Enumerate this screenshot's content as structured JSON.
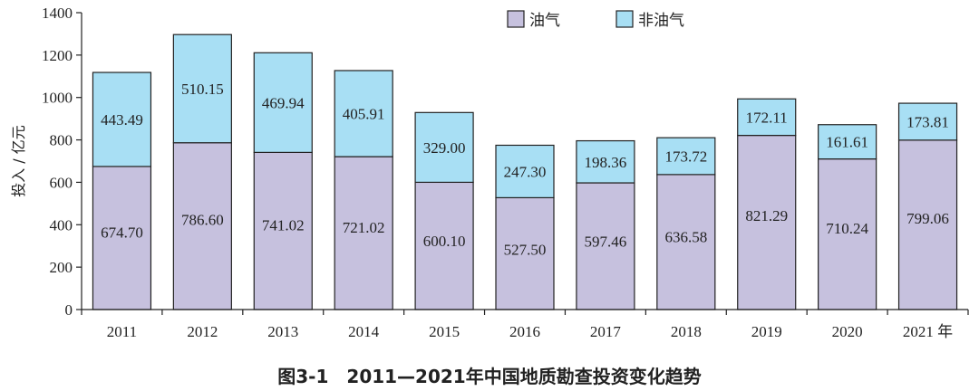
{
  "caption": "图3-1　2011—2021年中国地质勘查投资变化趋势",
  "colors": {
    "oil_gas": "#c6c1de",
    "non_oil_gas": "#a8dff4",
    "stroke": "#222222"
  },
  "chart_data": {
    "type": "bar",
    "stacked": true,
    "title": "图3-1　2011—2021年中国地质勘查投资变化趋势",
    "ylabel": "投入 / 亿元",
    "xlabel": "",
    "x_unit_suffix": "年",
    "categories": [
      "2011",
      "2012",
      "2013",
      "2014",
      "2015",
      "2016",
      "2017",
      "2018",
      "2019",
      "2020",
      "2021"
    ],
    "series": [
      {
        "name": "油气",
        "values": [
          674.7,
          786.6,
          741.02,
          721.02,
          600.1,
          527.5,
          597.46,
          636.58,
          821.29,
          710.24,
          799.06
        ],
        "labels": [
          "674.70",
          "786.60",
          "741.02",
          "721.02",
          "600.10",
          "527.50",
          "597.46",
          "636.58",
          "821.29",
          "710.24",
          "799.06"
        ]
      },
      {
        "name": "非油气",
        "values": [
          443.49,
          510.15,
          469.94,
          405.91,
          329.0,
          247.3,
          198.36,
          173.72,
          172.11,
          161.61,
          173.81
        ],
        "labels": [
          "443.49",
          "510.15",
          "469.94",
          "405.91",
          "329.00",
          "247.30",
          "198.36",
          "173.72",
          "172.11",
          "161.61",
          "173.81"
        ]
      }
    ],
    "ylim": [
      0,
      1400
    ],
    "yticks": [
      "0",
      "200",
      "400",
      "600",
      "800",
      "1000",
      "1200",
      "1400"
    ],
    "legend_position": "top-right",
    "grid": false
  }
}
